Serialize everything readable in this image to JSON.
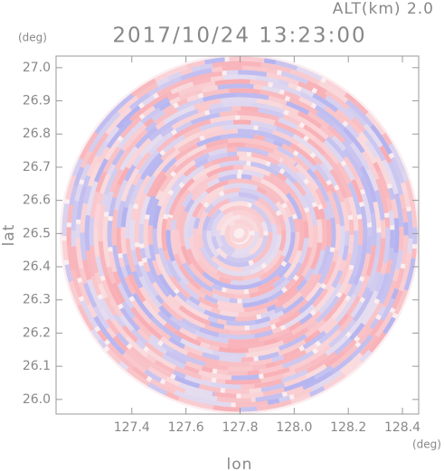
{
  "chart_data": {
    "type": "radar-ppi",
    "title": "2017/10/24 13:23:00",
    "subtitle": "ALT(km) 2.0",
    "xlabel": "lon",
    "ylabel": "lat",
    "xunit": "(deg)",
    "yunit": "(deg)",
    "xlim": [
      127.12,
      128.46
    ],
    "ylim": [
      25.956,
      27.035
    ],
    "xticks": [
      127.4,
      127.6,
      127.8,
      {
        "value": 128.0,
        "label": "128.0"
      },
      128.2,
      128.4
    ],
    "yticks": [
      {
        "value": 26.0,
        "label": "26.0"
      },
      26.1,
      26.2,
      26.3,
      26.4,
      26.5,
      26.6,
      26.7,
      26.8,
      26.9,
      {
        "value": 27.0,
        "label": "27.0"
      }
    ]
  }
}
